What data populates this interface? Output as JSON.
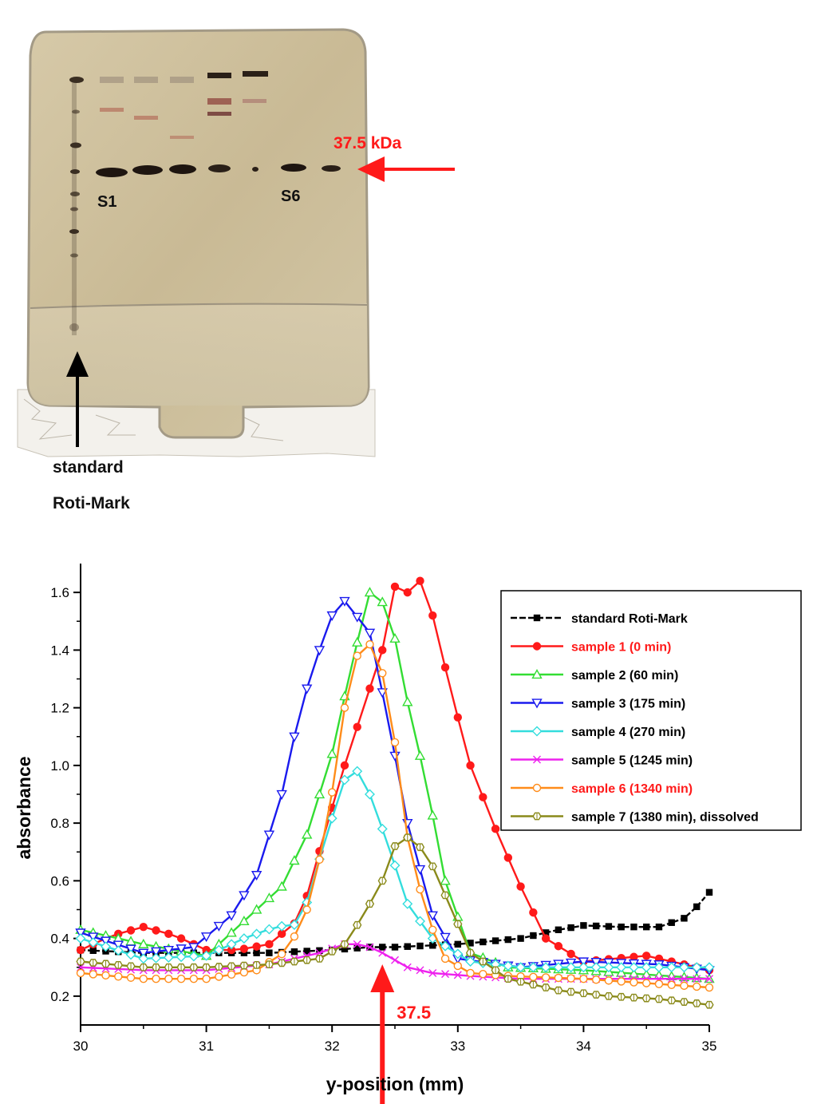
{
  "gel": {
    "kda_label": "37.5 kDa",
    "lane_s1": "S1",
    "lane_s6": "S6",
    "standard_line1": "standard",
    "standard_line2": "Roti-Mark"
  },
  "colors": {
    "red_arrow": "#ff1a1a",
    "gel_background": "#cdbf9c"
  },
  "chart_data": {
    "type": "line",
    "xlabel": "y-position (mm)",
    "ylabel": "absorbance",
    "xlim": [
      30,
      35
    ],
    "ylim": [
      0.1,
      1.7
    ],
    "xticks": [
      "30",
      "31",
      "32",
      "33",
      "34",
      "35"
    ],
    "yticks": [
      "0.2",
      "0.4",
      "0.6",
      "0.8",
      "1.0",
      "1.2",
      "1.4",
      "1.6"
    ],
    "legend_position": "top-right",
    "annotation": "37.5",
    "annotation_x": 32.4,
    "series": [
      {
        "name": "standard Roti-Mark",
        "color": "#000000",
        "marker": "square",
        "legend_text_color": "#000000",
        "x": [
          30.0,
          30.5,
          31.0,
          31.5,
          32.0,
          32.3,
          32.5,
          33.0,
          33.5,
          33.8,
          34.0,
          34.3,
          34.6,
          34.8,
          34.9,
          35.0
        ],
        "y": [
          0.36,
          0.35,
          0.35,
          0.35,
          0.36,
          0.37,
          0.37,
          0.38,
          0.4,
          0.43,
          0.445,
          0.44,
          0.44,
          0.47,
          0.51,
          0.56
        ]
      },
      {
        "name": "sample 1 (0 min)",
        "color": "#ff1a1a",
        "marker": "circle-filled",
        "legend_text_color": "#ff1a1a",
        "x": [
          30.0,
          30.25,
          30.5,
          30.75,
          31.0,
          31.25,
          31.5,
          31.75,
          31.95,
          32.1,
          32.25,
          32.4,
          32.5,
          32.6,
          32.7,
          32.8,
          32.95,
          33.1,
          33.3,
          33.5,
          33.7,
          34.0,
          34.5,
          35.0
        ],
        "y": [
          0.36,
          0.41,
          0.44,
          0.41,
          0.36,
          0.36,
          0.38,
          0.47,
          0.78,
          1.0,
          1.2,
          1.4,
          1.62,
          1.6,
          1.64,
          1.52,
          1.25,
          1.0,
          0.78,
          0.58,
          0.4,
          0.32,
          0.34,
          0.29
        ]
      },
      {
        "name": "sample 2 (60 min)",
        "color": "#33dd33",
        "marker": "triangle-up",
        "legend_text_color": "#000000",
        "x": [
          30.0,
          30.5,
          31.0,
          31.3,
          31.6,
          31.8,
          32.0,
          32.15,
          32.3,
          32.45,
          32.6,
          32.75,
          32.9,
          33.1,
          33.4,
          34.0,
          35.0
        ],
        "y": [
          0.43,
          0.38,
          0.34,
          0.46,
          0.58,
          0.76,
          1.04,
          1.34,
          1.6,
          1.55,
          1.22,
          0.94,
          0.6,
          0.35,
          0.3,
          0.29,
          0.26
        ]
      },
      {
        "name": "sample 3 (175 min)",
        "color": "#1a1aee",
        "marker": "triangle-down",
        "legend_text_color": "#000000",
        "x": [
          30.0,
          30.5,
          30.9,
          31.2,
          31.4,
          31.6,
          31.75,
          31.9,
          32.0,
          32.1,
          32.3,
          32.45,
          32.6,
          32.8,
          33.0,
          33.5,
          34.0,
          34.6,
          35.0
        ],
        "y": [
          0.42,
          0.35,
          0.37,
          0.48,
          0.62,
          0.9,
          1.2,
          1.4,
          1.52,
          1.57,
          1.46,
          1.15,
          0.8,
          0.48,
          0.33,
          0.3,
          0.32,
          0.31,
          0.29
        ]
      },
      {
        "name": "sample 4 (270 min)",
        "color": "#33dddd",
        "marker": "diamond",
        "legend_text_color": "#000000",
        "x": [
          30.0,
          30.5,
          31.0,
          31.3,
          31.55,
          31.75,
          31.95,
          32.1,
          32.2,
          32.3,
          32.45,
          32.6,
          32.8,
          33.1,
          33.5,
          34.5,
          35.0
        ],
        "y": [
          0.4,
          0.33,
          0.34,
          0.4,
          0.44,
          0.45,
          0.75,
          0.95,
          0.98,
          0.9,
          0.72,
          0.52,
          0.4,
          0.32,
          0.3,
          0.3,
          0.3
        ]
      },
      {
        "name": "sample 5 (1245 min)",
        "color": "#ee22ee",
        "marker": "x",
        "legend_text_color": "#000000",
        "x": [
          30.0,
          30.5,
          31.0,
          31.5,
          31.9,
          32.1,
          32.25,
          32.4,
          32.6,
          32.8,
          33.1,
          33.5,
          34.0,
          34.5,
          35.0
        ],
        "y": [
          0.3,
          0.29,
          0.29,
          0.31,
          0.35,
          0.38,
          0.38,
          0.35,
          0.3,
          0.28,
          0.27,
          0.26,
          0.26,
          0.26,
          0.26
        ]
      },
      {
        "name": "sample 6 (1340 min)",
        "color": "#ff8c1a",
        "marker": "circle-open",
        "legend_text_color": "#ff1a1a",
        "x": [
          30.0,
          30.5,
          31.0,
          31.4,
          31.65,
          31.8,
          31.95,
          32.1,
          32.2,
          32.3,
          32.4,
          32.5,
          32.6,
          32.75,
          32.9,
          33.1,
          33.4,
          34.0,
          35.0
        ],
        "y": [
          0.28,
          0.26,
          0.26,
          0.29,
          0.36,
          0.5,
          0.76,
          1.2,
          1.38,
          1.42,
          1.32,
          1.08,
          0.75,
          0.48,
          0.33,
          0.28,
          0.27,
          0.26,
          0.23
        ]
      },
      {
        "name": "sample 7 (1380 min), dissolved",
        "color": "#8a8a1a",
        "marker": "hexagon",
        "legend_text_color": "#000000",
        "x": [
          30.0,
          30.5,
          31.0,
          31.5,
          31.9,
          32.1,
          32.25,
          32.4,
          32.5,
          32.6,
          32.75,
          32.9,
          33.1,
          33.4,
          33.8,
          34.2,
          34.6,
          35.0
        ],
        "y": [
          0.32,
          0.3,
          0.3,
          0.31,
          0.33,
          0.38,
          0.48,
          0.6,
          0.72,
          0.75,
          0.7,
          0.55,
          0.35,
          0.26,
          0.22,
          0.2,
          0.19,
          0.17
        ]
      }
    ]
  }
}
